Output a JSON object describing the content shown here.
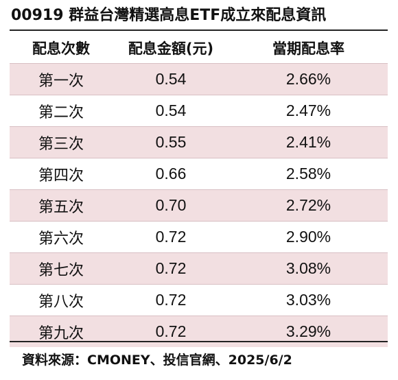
{
  "title": "00919 群益台灣精選高息ETF成立來配息資訊",
  "columns": [
    "配息次數",
    "配息金額(元)",
    "當期配息率"
  ],
  "rows": [
    {
      "label": "第一次",
      "amount": "0.54",
      "rate": "2.66%"
    },
    {
      "label": "第二次",
      "amount": "0.54",
      "rate": "2.47%"
    },
    {
      "label": "第三次",
      "amount": "0.55",
      "rate": "2.41%"
    },
    {
      "label": "第四次",
      "amount": "0.66",
      "rate": "2.58%"
    },
    {
      "label": "第五次",
      "amount": "0.70",
      "rate": "2.72%"
    },
    {
      "label": "第六次",
      "amount": "0.72",
      "rate": "2.90%"
    },
    {
      "label": "第七次",
      "amount": "0.72",
      "rate": "3.08%"
    },
    {
      "label": "第八次",
      "amount": "0.72",
      "rate": "3.03%"
    },
    {
      "label": "第九次",
      "amount": "0.72",
      "rate": "3.29%"
    }
  ],
  "source": "資料來源：CMONEY、投信官網、2025/6/2",
  "colors": {
    "stripe": "#f2dfe1",
    "text": "#111111",
    "rule": "#222222"
  }
}
